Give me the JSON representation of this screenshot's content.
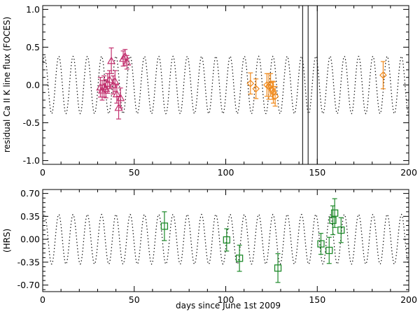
{
  "chart_data": [
    {
      "type": "scatter",
      "panel": "top",
      "xlabel": "",
      "ylabel": "residual Ca II K line flux (FOCES)",
      "xlim": [
        0,
        200
      ],
      "ylim": [
        -1.05,
        1.05
      ],
      "xticks": [
        "0",
        "50",
        "100",
        "150",
        "200"
      ],
      "yticks": [
        {
          "value": -1.0,
          "label": "-1.0"
        },
        {
          "value": -0.5,
          "label": "-0.5"
        },
        {
          "value": 0.0,
          "label": "0.0"
        },
        {
          "value": 0.5,
          "label": "0.5"
        },
        {
          "value": 1.0,
          "label": "1.0"
        }
      ],
      "model": {
        "amplitude": 0.38,
        "period_days": 7.8,
        "phase_day": 1.0
      },
      "vertical_lines": [
        142,
        145,
        150
      ],
      "series": [
        {
          "name": "FOCES (triangles)",
          "marker": "triangle",
          "color": "#c2306e",
          "points": [
            {
              "x": 31.5,
              "y": -0.03,
              "err": 0.13
            },
            {
              "x": 32.5,
              "y": -0.07,
              "err": 0.13
            },
            {
              "x": 33.5,
              "y": -0.02,
              "err": 0.14
            },
            {
              "x": 34.5,
              "y": -0.05,
              "err": 0.12
            },
            {
              "x": 35.5,
              "y": 0.02,
              "err": 0.13
            },
            {
              "x": 36.5,
              "y": 0.07,
              "err": 0.12
            },
            {
              "x": 37.5,
              "y": 0.32,
              "err": 0.17
            },
            {
              "x": 38.5,
              "y": 0.0,
              "err": 0.12
            },
            {
              "x": 39.5,
              "y": 0.05,
              "err": 0.14
            },
            {
              "x": 40.5,
              "y": -0.12,
              "err": 0.12
            },
            {
              "x": 41.5,
              "y": -0.3,
              "err": 0.15
            },
            {
              "x": 42.5,
              "y": -0.17,
              "err": 0.13
            },
            {
              "x": 44.0,
              "y": 0.35,
              "err": 0.1
            },
            {
              "x": 45.0,
              "y": 0.38,
              "err": 0.09
            },
            {
              "x": 46.0,
              "y": 0.3,
              "err": 0.09
            }
          ]
        },
        {
          "name": "FOCES (diamonds)",
          "marker": "diamond",
          "color": "#f08a1d",
          "points": [
            {
              "x": 113.5,
              "y": 0.02,
              "err": 0.14
            },
            {
              "x": 116.5,
              "y": -0.05,
              "err": 0.13
            },
            {
              "x": 122.5,
              "y": 0.0,
              "err": 0.15
            },
            {
              "x": 123.5,
              "y": -0.02,
              "err": 0.17
            },
            {
              "x": 124.5,
              "y": 0.0,
              "err": 0.15
            },
            {
              "x": 125.5,
              "y": -0.07,
              "err": 0.12
            },
            {
              "x": 126.0,
              "y": -0.1,
              "err": 0.14
            },
            {
              "x": 127.0,
              "y": -0.15,
              "err": 0.13
            },
            {
              "x": 186.0,
              "y": 0.13,
              "err": 0.18
            }
          ]
        }
      ]
    },
    {
      "type": "scatter",
      "panel": "bottom",
      "xlabel": "days since June 1st 2009",
      "ylabel": "(HRS)",
      "xlim": [
        0,
        200
      ],
      "ylim": [
        -0.8,
        0.76
      ],
      "xticks": [
        "0",
        "50",
        "100",
        "150",
        "200"
      ],
      "yticks": [
        {
          "value": -0.7,
          "label": "-0.70"
        },
        {
          "value": -0.35,
          "label": "-0.35"
        },
        {
          "value": 0.0,
          "label": "0.00"
        },
        {
          "value": 0.35,
          "label": "0.35"
        },
        {
          "value": 0.7,
          "label": "0.70"
        }
      ],
      "model": {
        "amplitude": 0.38,
        "period_days": 7.8,
        "phase_day": 1.0
      },
      "series": [
        {
          "name": "HRS",
          "marker": "square",
          "color": "#1e8a2a",
          "points": [
            {
              "x": 66.5,
              "y": 0.2,
              "err": 0.22
            },
            {
              "x": 100.5,
              "y": -0.01,
              "err": 0.17
            },
            {
              "x": 107.5,
              "y": -0.29,
              "err": 0.2
            },
            {
              "x": 128.5,
              "y": -0.44,
              "err": 0.22
            },
            {
              "x": 152.0,
              "y": -0.07,
              "err": 0.16
            },
            {
              "x": 156.5,
              "y": -0.17,
              "err": 0.2
            },
            {
              "x": 158.5,
              "y": 0.29,
              "err": 0.22
            },
            {
              "x": 159.5,
              "y": 0.4,
              "err": 0.22
            },
            {
              "x": 163.0,
              "y": 0.14,
              "err": 0.19
            }
          ]
        }
      ]
    }
  ]
}
